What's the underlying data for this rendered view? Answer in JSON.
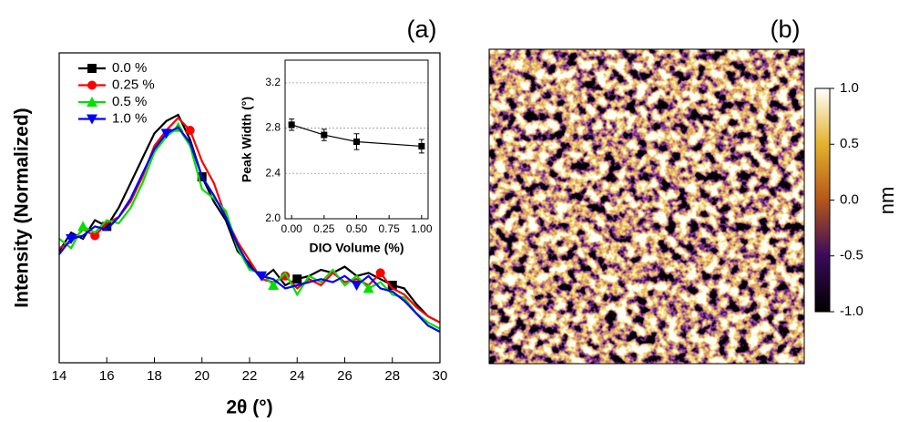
{
  "chart_data": [
    {
      "type": "line",
      "panel_label": "(a)",
      "xlabel": "2θ (°)",
      "ylabel": "Intensity (Normalized)",
      "x": [
        14,
        14.5,
        15,
        15.5,
        16,
        16.5,
        17,
        17.5,
        18,
        18.5,
        19,
        19.5,
        20,
        20.5,
        21,
        21.5,
        22,
        22.5,
        23,
        23.5,
        24,
        24.5,
        25,
        25.5,
        26,
        26.5,
        27,
        27.5,
        28,
        28.5,
        29,
        29.5,
        30
      ],
      "series": [
        {
          "name": "0.0 %",
          "color": "#000000",
          "marker": "square",
          "values": [
            0.36,
            0.42,
            0.4,
            0.46,
            0.44,
            0.5,
            0.58,
            0.66,
            0.74,
            0.78,
            0.8,
            0.72,
            0.6,
            0.52,
            0.46,
            0.36,
            0.32,
            0.27,
            0.3,
            0.25,
            0.27,
            0.28,
            0.3,
            0.29,
            0.31,
            0.28,
            0.29,
            0.27,
            0.25,
            0.24,
            0.19,
            0.15,
            0.13
          ]
        },
        {
          "name": "0.25 %",
          "color": "#ff0000",
          "marker": "circle",
          "values": [
            0.37,
            0.39,
            0.43,
            0.41,
            0.45,
            0.47,
            0.52,
            0.6,
            0.7,
            0.75,
            0.79,
            0.75,
            0.65,
            0.58,
            0.47,
            0.39,
            0.33,
            0.27,
            0.26,
            0.28,
            0.24,
            0.27,
            0.25,
            0.29,
            0.26,
            0.27,
            0.25,
            0.29,
            0.24,
            0.22,
            0.18,
            0.15,
            0.13
          ]
        },
        {
          "name": "0.5 %",
          "color": "#00e000",
          "marker": "triangle-up",
          "values": [
            0.4,
            0.37,
            0.44,
            0.42,
            0.46,
            0.45,
            0.5,
            0.58,
            0.68,
            0.73,
            0.76,
            0.7,
            0.56,
            0.53,
            0.49,
            0.37,
            0.3,
            0.29,
            0.25,
            0.29,
            0.22,
            0.28,
            0.26,
            0.3,
            0.25,
            0.28,
            0.24,
            0.26,
            0.22,
            0.21,
            0.16,
            0.13,
            0.11
          ]
        },
        {
          "name": "1.0 %",
          "color": "#0000ff",
          "marker": "triangle-down",
          "values": [
            0.35,
            0.4,
            0.41,
            0.44,
            0.43,
            0.47,
            0.53,
            0.61,
            0.69,
            0.74,
            0.76,
            0.71,
            0.6,
            0.54,
            0.47,
            0.38,
            0.31,
            0.28,
            0.27,
            0.24,
            0.25,
            0.26,
            0.27,
            0.26,
            0.28,
            0.25,
            0.28,
            0.24,
            0.23,
            0.2,
            0.16,
            0.12,
            0.1
          ]
        }
      ],
      "xlim": [
        14,
        30
      ],
      "xticks": [
        14,
        16,
        18,
        20,
        22,
        24,
        26,
        28,
        30
      ],
      "ylim": [
        0,
        1
      ]
    },
    {
      "type": "scatter",
      "xlabel": "DIO Volume (%)",
      "ylabel": "Peak Width (°)",
      "x": [
        0,
        0.25,
        0.5,
        1.0
      ],
      "values": [
        2.83,
        2.74,
        2.68,
        2.64
      ],
      "errors": [
        0.05,
        0.05,
        0.07,
        0.06
      ],
      "color": "#000000",
      "xlim": [
        -0.05,
        1.05
      ],
      "xticks": [
        {
          "value": 0,
          "label": "0.00"
        },
        0.25,
        {
          "value": 0.5,
          "label": "0.50"
        },
        0.75,
        {
          "value": 1,
          "label": "1.00"
        }
      ],
      "ylim": [
        2.0,
        3.4
      ],
      "yticks": [
        {
          "value": 2,
          "label": "2.0"
        },
        2.4,
        2.8,
        3.2
      ],
      "grid": true
    },
    {
      "type": "heatmap",
      "panel_label": "(b)",
      "colorbar_label": "nm",
      "zlim": [
        -1,
        1
      ],
      "zticks": [
        {
          "value": 1,
          "label": "1.0"
        },
        0.5,
        {
          "value": 0,
          "label": "0.0"
        },
        -0.5,
        {
          "value": -1,
          "label": "-1.0"
        }
      ]
    }
  ]
}
